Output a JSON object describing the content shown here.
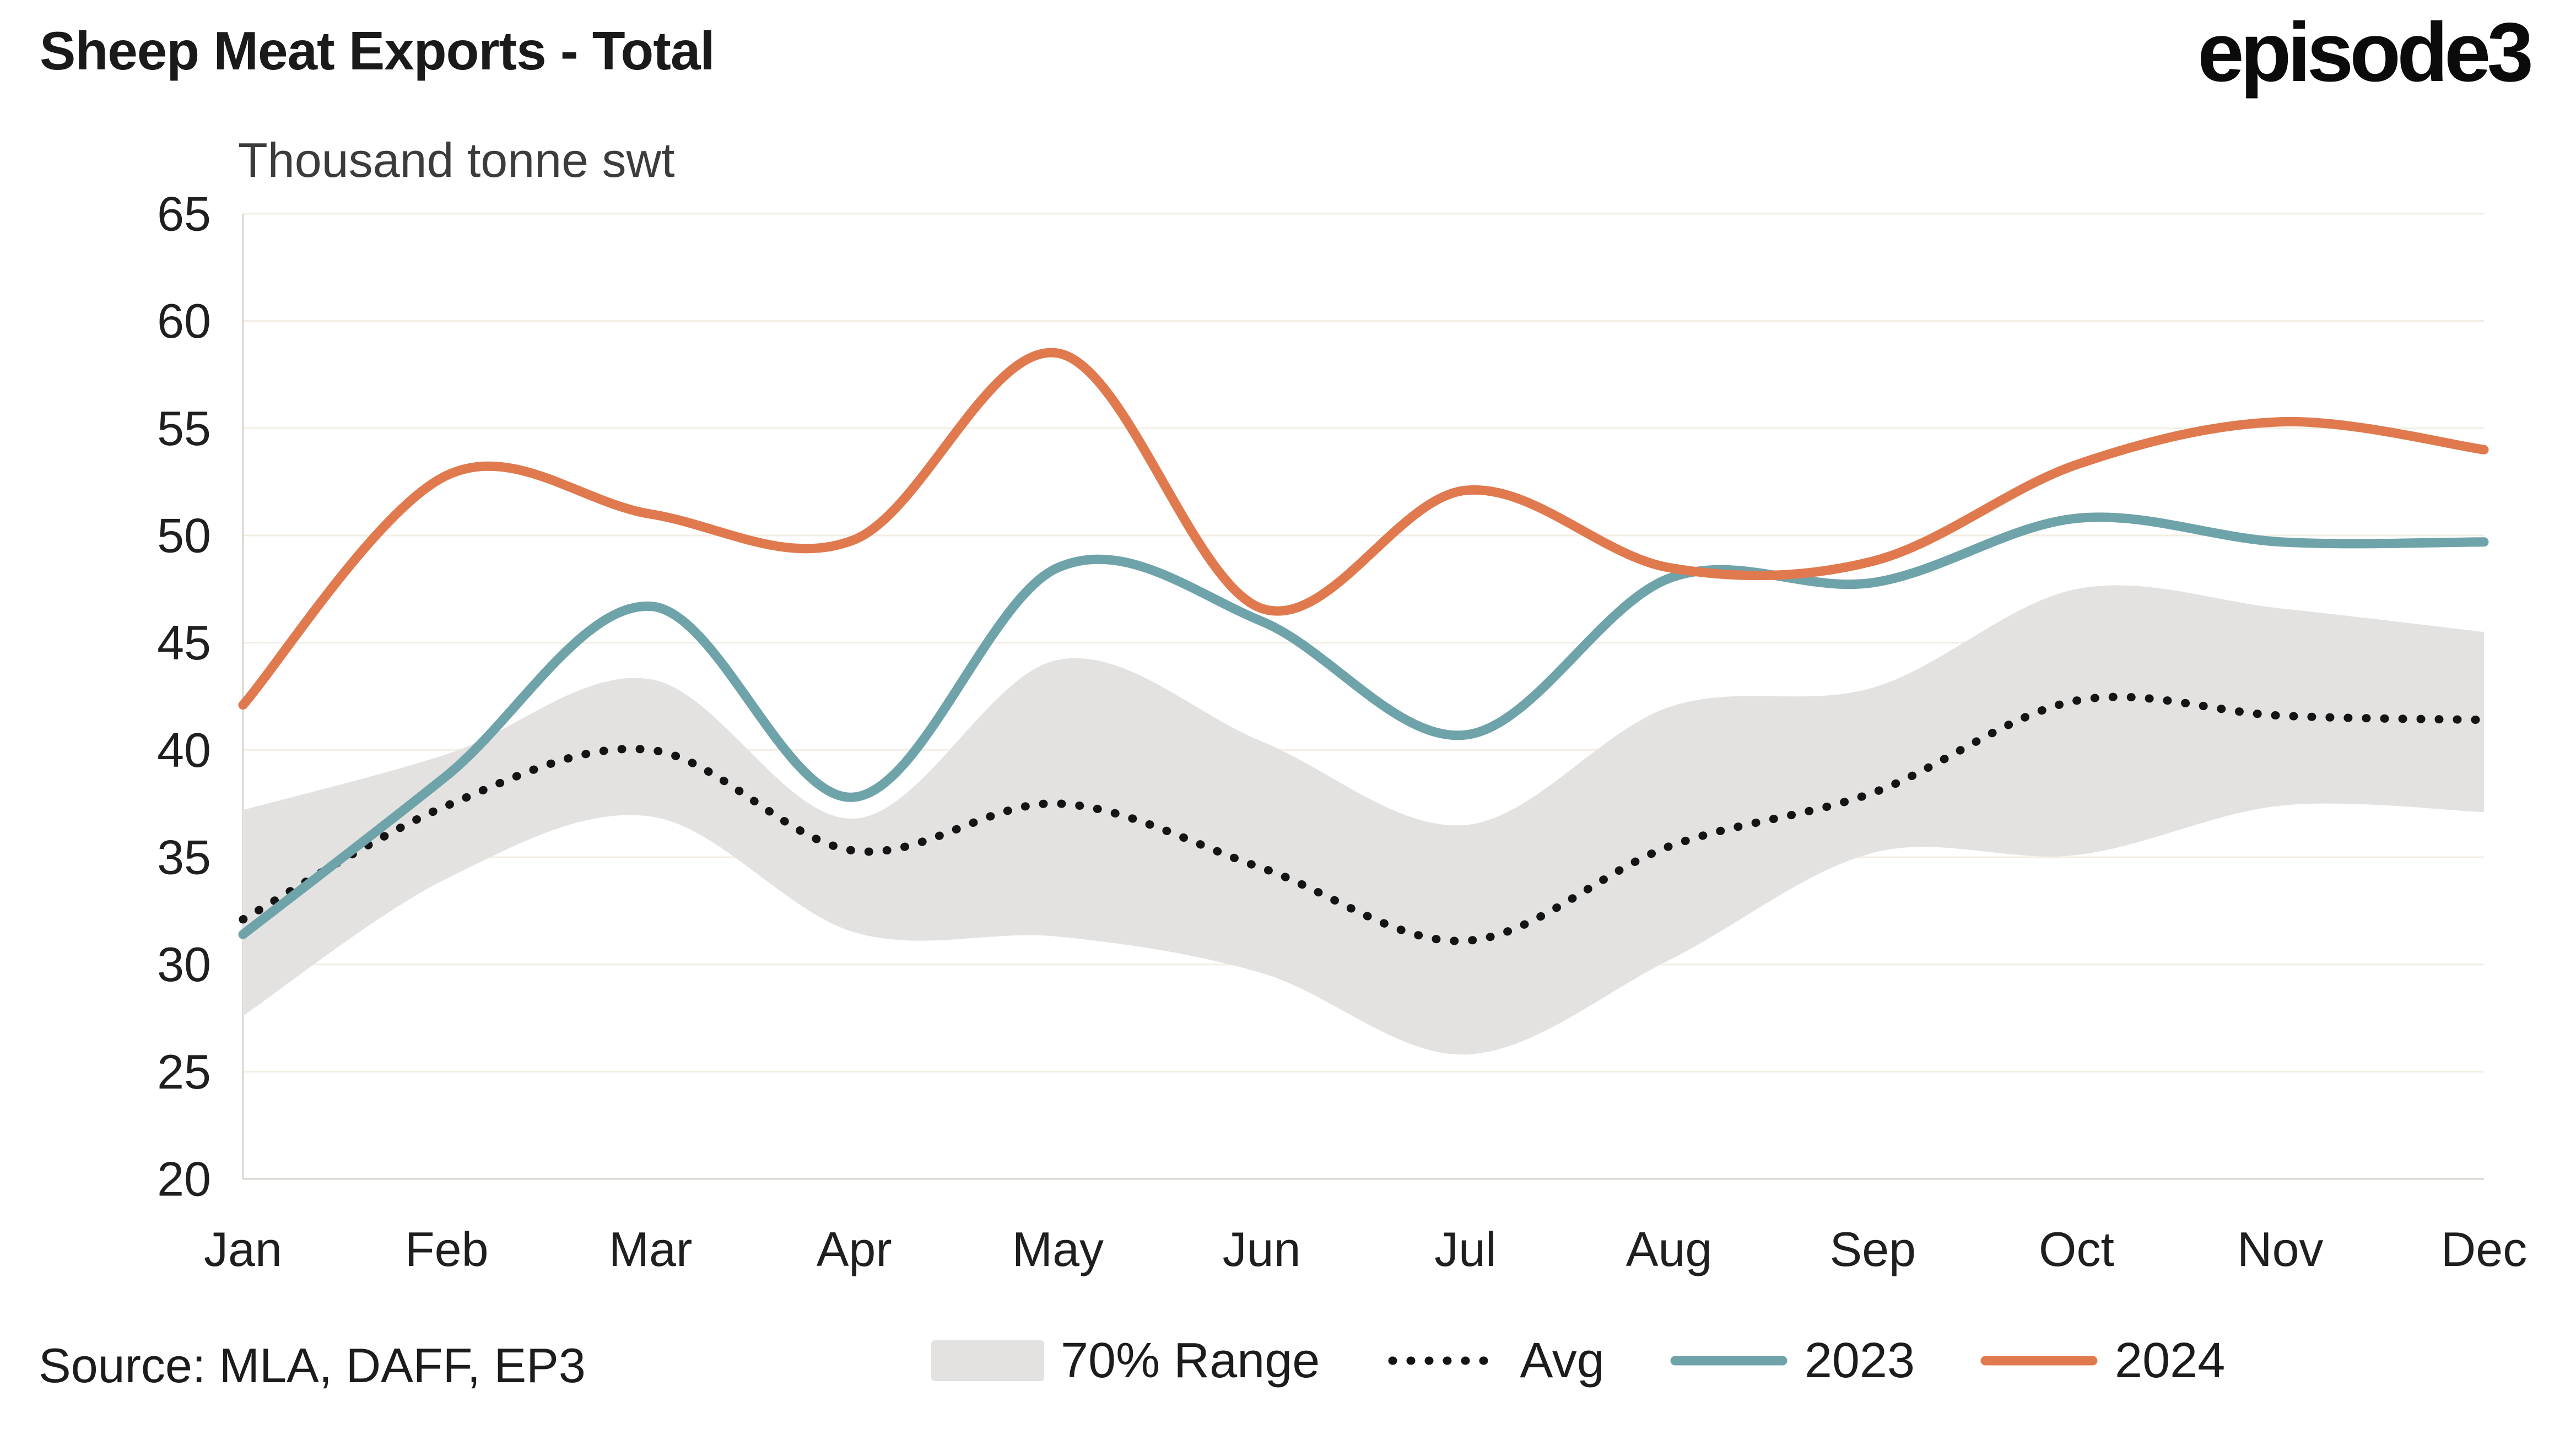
{
  "header": {
    "title": "Sheep Meat Exports - Total",
    "logo": "episode3",
    "subtitle": "Thousand tonne swt"
  },
  "source": "Source: MLA, DAFF, EP3",
  "colors": {
    "band": "#e3e2e0",
    "avg": "#141414",
    "y2023": "#6fa3aa",
    "y2024": "#e07a4e",
    "grid": "#f3eee3",
    "axis": "#d9d5cd",
    "text": "#1f1f1f"
  },
  "legend": [
    {
      "label": "70% Range",
      "type": "band"
    },
    {
      "label": "Avg",
      "type": "dotted"
    },
    {
      "label": "2023",
      "type": "line"
    },
    {
      "label": "2024",
      "type": "line"
    }
  ],
  "chart_data": {
    "type": "line",
    "title": "Sheep Meat Exports - Total",
    "xlabel": "",
    "ylabel": "Thousand tonne swt",
    "categories": [
      "Jan",
      "Feb",
      "Mar",
      "Apr",
      "May",
      "Jun",
      "Jul",
      "Aug",
      "Sep",
      "Oct",
      "Nov",
      "Dec"
    ],
    "ylim": [
      20,
      65
    ],
    "yticks": [
      20,
      25,
      30,
      35,
      40,
      45,
      50,
      55,
      60,
      65
    ],
    "grid": "horizontal",
    "legend_position": "bottom",
    "band": {
      "name": "70% Range",
      "upper": [
        37.2,
        39.8,
        43.3,
        36.8,
        44.2,
        40.4,
        36.5,
        42.0,
        42.9,
        47.5,
        46.6,
        45.5
      ],
      "lower": [
        27.6,
        34.0,
        36.9,
        31.5,
        31.3,
        29.6,
        25.8,
        30.2,
        35.2,
        35.1,
        37.4,
        37.1
      ]
    },
    "series": [
      {
        "name": "Avg",
        "values": [
          32.1,
          37.4,
          40.0,
          35.3,
          37.5,
          34.5,
          31.1,
          35.5,
          38.0,
          42.3,
          41.6,
          41.4
        ]
      },
      {
        "name": "2023",
        "values": [
          31.4,
          38.8,
          46.7,
          37.8,
          48.5,
          46.0,
          40.7,
          48.0,
          47.8,
          50.8,
          49.7,
          49.7
        ]
      },
      {
        "name": "2024",
        "values": [
          42.1,
          52.8,
          51.0,
          49.8,
          58.5,
          46.6,
          52.1,
          48.5,
          48.8,
          53.3,
          55.3,
          54.0
        ]
      }
    ]
  }
}
